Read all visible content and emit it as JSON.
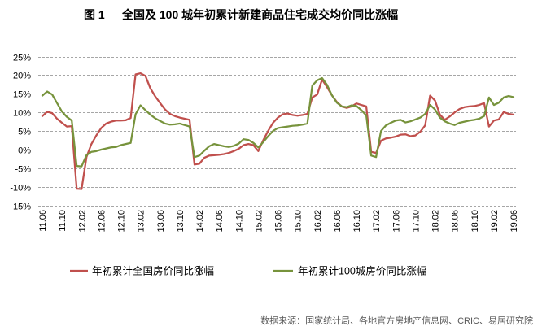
{
  "figure_label": "图 1",
  "source": "数据来源：国家统计局、各地官方房地产信息网、CRIC、易居研究院",
  "chart_data": {
    "type": "line",
    "title": "全国及 100 城年初累计新建商品住宅成交均价同比涨幅",
    "x": [
      "11.06",
      "11.07",
      "11.08",
      "11.09",
      "11.10",
      "11.11",
      "11.12",
      "12.01",
      "12.02",
      "12.03",
      "12.04",
      "12.05",
      "12.06",
      "12.07",
      "12.08",
      "12.09",
      "12.10",
      "12.11",
      "12.12",
      "13.01",
      "13.02",
      "13.03",
      "13.04",
      "13.05",
      "13.06",
      "13.07",
      "13.08",
      "13.09",
      "13.10",
      "13.11",
      "13.12",
      "14.01",
      "14.02",
      "14.03",
      "14.04",
      "14.05",
      "14.06",
      "14.07",
      "14.08",
      "14.09",
      "14.10",
      "14.11",
      "14.12",
      "15.01",
      "15.02",
      "15.03",
      "15.04",
      "15.05",
      "15.06",
      "15.07",
      "15.08",
      "15.09",
      "15.10",
      "15.11",
      "15.12",
      "16.01",
      "16.02",
      "16.03",
      "16.04",
      "16.05",
      "16.06",
      "16.07",
      "16.08",
      "16.09",
      "16.10",
      "16.11",
      "16.12",
      "17.01",
      "17.02",
      "17.03",
      "17.04",
      "17.05",
      "17.06",
      "17.07",
      "17.08",
      "17.09",
      "17.10",
      "17.11",
      "17.12",
      "18.01",
      "18.02",
      "18.03",
      "18.04",
      "18.05",
      "18.06",
      "18.07",
      "18.08",
      "18.09",
      "18.10",
      "18.11",
      "18.12",
      "19.01",
      "19.02",
      "19.03",
      "19.04",
      "19.05",
      "19.06"
    ],
    "xtick_labels": [
      "11.06",
      "11.10",
      "12.02",
      "12.06",
      "12.10",
      "13.02",
      "13.06",
      "13.10",
      "14.02",
      "14.06",
      "14.10",
      "15.02",
      "15.06",
      "15.10",
      "16.02",
      "16.06",
      "16.10",
      "17.02",
      "17.06",
      "17.10",
      "18.02",
      "18.06",
      "18.10",
      "19.02",
      "19.06"
    ],
    "ylim": [
      -15,
      25
    ],
    "yticks": [
      25,
      20,
      15,
      10,
      5,
      0,
      -5,
      -10,
      -15
    ],
    "ytick_labels": [
      "25%",
      "20%",
      "15%",
      "10%",
      "5%",
      "0%",
      "-5%",
      "-10%",
      "-15%"
    ],
    "grid": true,
    "legend": "bottom",
    "series": [
      {
        "name": "年初累计全国房价同比涨幅",
        "color": "#C0504D",
        "values": [
          9.0,
          10.2,
          9.8,
          8.3,
          7.2,
          6.2,
          6.3,
          -10.5,
          -10.6,
          -2.0,
          1.5,
          3.8,
          5.8,
          7.0,
          7.5,
          7.8,
          7.8,
          7.9,
          8.5,
          20.2,
          20.5,
          19.8,
          16.5,
          14.3,
          12.5,
          10.8,
          9.6,
          9.0,
          8.6,
          8.3,
          8.0,
          -4.0,
          -3.8,
          -2.2,
          -1.6,
          -1.5,
          -1.4,
          -1.2,
          -0.9,
          -0.4,
          0.2,
          1.2,
          1.5,
          1.2,
          -0.4,
          2.5,
          5.0,
          7.2,
          8.6,
          9.5,
          9.7,
          9.3,
          9.1,
          9.3,
          9.6,
          14.0,
          14.8,
          18.8,
          16.8,
          14.6,
          12.8,
          11.6,
          11.2,
          11.6,
          12.4,
          12.0,
          11.6,
          -0.6,
          -0.9,
          2.4,
          3.0,
          3.2,
          3.5,
          4.0,
          4.1,
          3.6,
          3.8,
          4.8,
          6.5,
          14.5,
          13.2,
          9.4,
          8.0,
          8.9,
          10.0,
          10.9,
          11.4,
          11.6,
          11.7,
          12.0,
          12.5,
          6.2,
          7.8,
          8.1,
          10.1,
          9.6,
          9.4
        ]
      },
      {
        "name": "年初累计100城房价同比涨幅",
        "color": "#77933C",
        "values": [
          14.5,
          15.6,
          14.8,
          12.5,
          10.2,
          8.8,
          7.8,
          -4.4,
          -4.5,
          -1.5,
          -0.6,
          -0.4,
          0.0,
          0.3,
          0.6,
          0.7,
          1.2,
          1.5,
          1.8,
          9.5,
          11.9,
          10.6,
          9.4,
          8.4,
          7.7,
          7.0,
          6.7,
          6.8,
          7.0,
          6.6,
          6.2,
          -2.0,
          -1.6,
          -0.3,
          0.9,
          1.5,
          1.2,
          0.9,
          0.7,
          1.0,
          1.6,
          2.8,
          2.6,
          1.8,
          0.6,
          2.0,
          3.6,
          5.0,
          5.8,
          6.0,
          6.2,
          6.4,
          6.5,
          6.7,
          7.0,
          17.2,
          18.6,
          19.2,
          17.4,
          14.6,
          12.6,
          11.6,
          11.4,
          11.9,
          11.7,
          10.6,
          9.2,
          -1.6,
          -2.0,
          5.0,
          6.5,
          7.2,
          7.8,
          8.0,
          7.3,
          7.6,
          8.1,
          8.6,
          9.6,
          12.0,
          10.8,
          8.6,
          7.6,
          7.0,
          6.6,
          7.2,
          7.5,
          7.8,
          8.0,
          8.3,
          9.0,
          14.0,
          12.0,
          12.6,
          14.0,
          14.4,
          14.1
        ]
      }
    ]
  }
}
